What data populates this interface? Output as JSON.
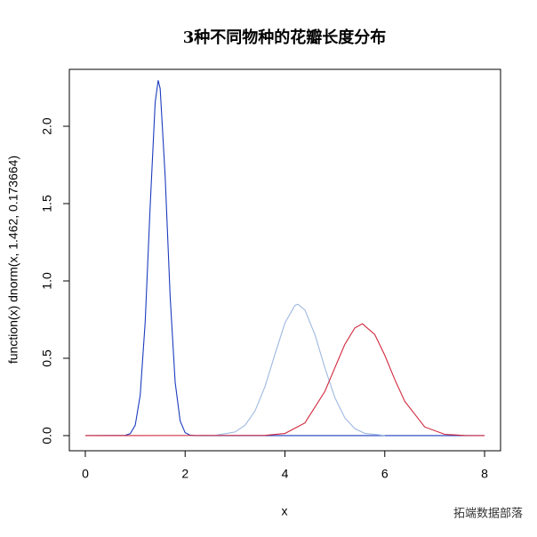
{
  "chart_data": {
    "type": "line",
    "title": "3种不同物种的花瓣长度分布",
    "x_label": "x",
    "y_label": "function(x) dnorm(x, 1.462, 0.173664)",
    "watermark": "拓端数据部落",
    "xlim": [
      -0.32,
      8.32
    ],
    "ylim": [
      -0.098,
      2.368
    ],
    "xticks": [
      0,
      2,
      4,
      6,
      8
    ],
    "yticks": [
      {
        "value": 0,
        "label": "0.0"
      },
      {
        "value": 0.5,
        "label": "0.5"
      },
      {
        "value": 1,
        "label": "1.0"
      },
      {
        "value": 1.5,
        "label": "1.5"
      },
      {
        "value": 2,
        "label": "2.0"
      }
    ],
    "series": [
      {
        "color": "#1c3bbf",
        "x": [
          0,
          0.8,
          0.9,
          1.0,
          1.1,
          1.2,
          1.3,
          1.4,
          1.46,
          1.5,
          1.6,
          1.7,
          1.8,
          1.9,
          2.0,
          2.1,
          2.2,
          8
        ],
        "values": [
          0,
          0.0016,
          0.0122,
          0.0668,
          0.2617,
          0.7363,
          1.4868,
          2.1555,
          2.297,
          2.243,
          1.6754,
          0.8982,
          0.3457,
          0.0956,
          0.0189,
          0.0027,
          0.0003,
          0
        ]
      },
      {
        "color": "#9db8e0",
        "x": [
          2.6,
          3.0,
          3.2,
          3.4,
          3.6,
          3.8,
          4.0,
          4.2,
          4.26,
          4.4,
          4.6,
          4.8,
          5.0,
          5.2,
          5.4,
          5.6,
          6.0
        ],
        "values": [
          0.0017,
          0.0233,
          0.0667,
          0.159,
          0.3167,
          0.5259,
          0.7285,
          0.842,
          0.849,
          0.8122,
          0.6535,
          0.4388,
          0.2457,
          0.1148,
          0.0447,
          0.0146,
          0.0009
        ]
      },
      {
        "color": "#d1283d",
        "x": [
          0,
          3.6,
          4.0,
          4.4,
          4.8,
          5.0,
          5.2,
          5.4,
          5.552,
          5.8,
          6.0,
          6.2,
          6.4,
          6.8,
          7.2,
          7.6,
          8.0
        ],
        "values": [
          0,
          0.0014,
          0.0139,
          0.0819,
          0.2857,
          0.4384,
          0.5899,
          0.696,
          0.7229,
          0.6535,
          0.52,
          0.3628,
          0.2221,
          0.056,
          0.0084,
          0.0007,
          0
        ]
      }
    ]
  }
}
